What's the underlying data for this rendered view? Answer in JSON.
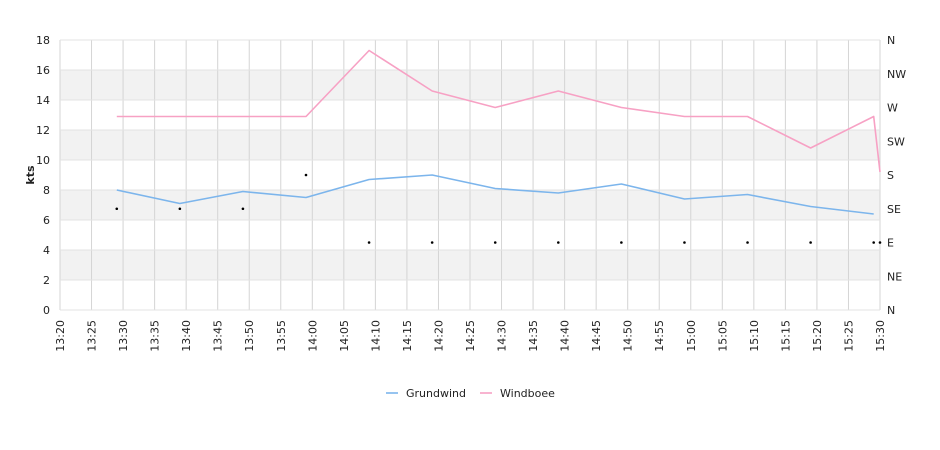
{
  "chart_data": {
    "type": "line",
    "title": "",
    "xlabel": "",
    "ylabel": "kts",
    "ylim": [
      0,
      18
    ],
    "y_ticks": [
      "0",
      "2",
      "4",
      "6",
      "8",
      "10",
      "12",
      "14",
      "16",
      "18"
    ],
    "x_ticks": [
      "13:20",
      "13:25",
      "13:30",
      "13:35",
      "13:40",
      "13:45",
      "13:50",
      "13:55",
      "14:00",
      "14:05",
      "14:10",
      "14:15",
      "14:20",
      "14:25",
      "14:30",
      "14:35",
      "14:40",
      "14:45",
      "14:50",
      "14:55",
      "15:00",
      "15:05",
      "15:10",
      "15:15",
      "15:20",
      "15:25",
      "15:30"
    ],
    "direction_ticks": [
      "N",
      "NE",
      "E",
      "SE",
      "S",
      "SW",
      "W",
      "NW",
      "N"
    ],
    "grid": true,
    "legend_position": "bottom",
    "x": [
      "13:29",
      "13:39",
      "13:49",
      "13:59",
      "14:09",
      "14:19",
      "14:29",
      "14:39",
      "14:49",
      "14:59",
      "15:09",
      "15:19",
      "15:29",
      "15:30"
    ],
    "series": [
      {
        "name": "Grundwind",
        "color": "#7cb5ec",
        "values": [
          8.0,
          7.1,
          7.9,
          7.5,
          8.7,
          9.0,
          8.1,
          7.8,
          8.4,
          7.4,
          7.7,
          6.9,
          6.4,
          null
        ]
      },
      {
        "name": "Windboee",
        "color": "#f7a1c4",
        "values": [
          12.9,
          12.9,
          12.9,
          12.9,
          17.3,
          14.6,
          13.5,
          14.6,
          13.5,
          12.9,
          12.9,
          10.8,
          12.9,
          9.2
        ]
      }
    ],
    "direction_points": {
      "x": [
        "13:29",
        "13:39",
        "13:49",
        "13:59",
        "14:09",
        "14:19",
        "14:29",
        "14:39",
        "14:49",
        "14:59",
        "15:09",
        "15:19",
        "15:29",
        "15:30"
      ],
      "values": [
        "SE",
        "SE",
        "SE",
        "S",
        "E",
        "E",
        "E",
        "E",
        "E",
        "E",
        "E",
        "E",
        "E",
        "E"
      ],
      "color": "#000000"
    }
  }
}
